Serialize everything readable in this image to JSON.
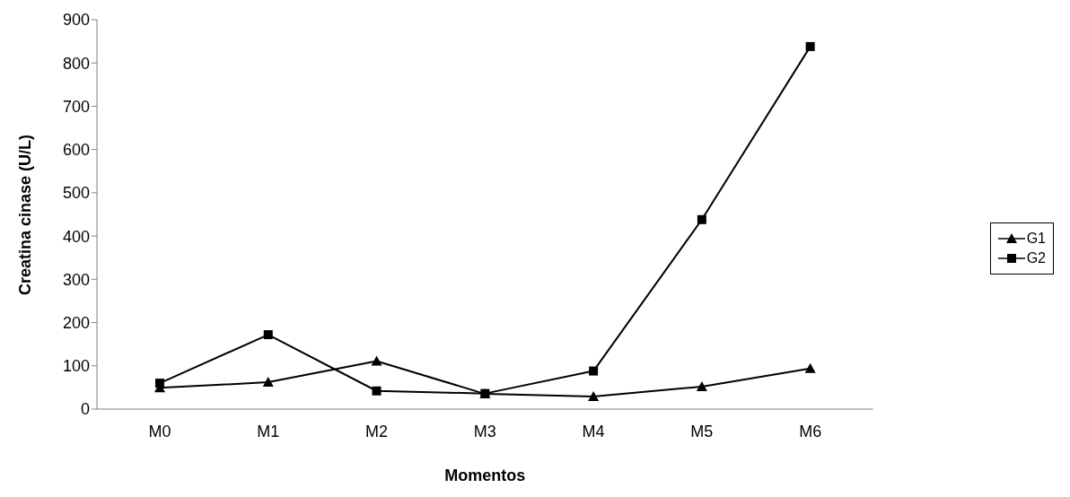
{
  "chart_data": {
    "type": "line",
    "xlabel": "Momentos",
    "ylabel": "Creatina cinase (U/L)",
    "categories": [
      "M0",
      "M1",
      "M2",
      "M3",
      "M4",
      "M5",
      "M6"
    ],
    "series": [
      {
        "name": "G1",
        "color": "#000000",
        "marker": "triangle",
        "values": [
          49,
          62,
          111,
          35,
          29,
          52,
          94
        ]
      },
      {
        "name": "G2",
        "color": "#000000",
        "marker": "square",
        "values": [
          60,
          172,
          42,
          36,
          88,
          438,
          838
        ]
      }
    ],
    "ylim": [
      0,
      900
    ],
    "yticks": [
      0,
      100,
      200,
      300,
      400,
      500,
      600,
      700,
      800,
      900
    ],
    "grid": false,
    "legend": "right",
    "line_style": "solid"
  }
}
